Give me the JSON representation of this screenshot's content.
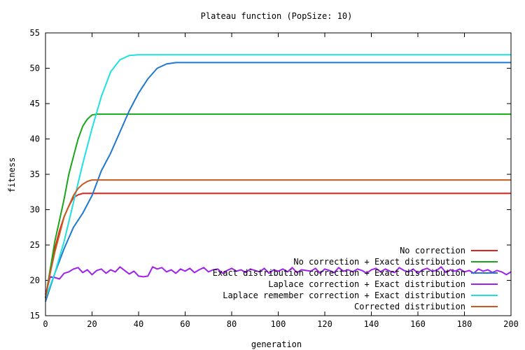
{
  "chart_data": {
    "type": "line",
    "title": "Plateau function (PopSize: 10)",
    "xlabel": "generation",
    "ylabel": "fitness",
    "xlim": [
      0,
      200
    ],
    "ylim": [
      15,
      55
    ],
    "xticks": [
      0,
      20,
      40,
      60,
      80,
      100,
      120,
      140,
      160,
      180,
      200
    ],
    "yticks": [
      15,
      20,
      25,
      30,
      35,
      40,
      45,
      50,
      55
    ],
    "grid": false,
    "legend_position": "bottom-right",
    "series": [
      {
        "name": "No correction",
        "color": "#e0201c",
        "x": [
          0,
          2,
          4,
          6,
          8,
          10,
          12,
          14,
          16,
          18,
          20,
          200
        ],
        "y": [
          17.5,
          21.5,
          24.5,
          27.0,
          29.0,
          30.5,
          31.7,
          32.1,
          32.3,
          32.3,
          32.3,
          32.3
        ]
      },
      {
        "name": "No correction + Exact distribution",
        "color": "#1aa61a",
        "x": [
          0,
          2,
          4,
          6,
          8,
          10,
          12,
          14,
          16,
          18,
          20,
          22,
          200
        ],
        "y": [
          17.5,
          21.5,
          25.5,
          28.5,
          31.5,
          35.0,
          37.5,
          40.0,
          41.8,
          42.8,
          43.4,
          43.5,
          43.5
        ]
      },
      {
        "name": "Exact distribution correction + Exact distribution",
        "color": "#1f78d1",
        "x": [
          0,
          4,
          8,
          12,
          16,
          20,
          24,
          28,
          32,
          36,
          40,
          44,
          48,
          52,
          56,
          200
        ],
        "y": [
          17.0,
          21.0,
          24.5,
          27.5,
          29.5,
          32.0,
          35.5,
          38.0,
          41.0,
          44.0,
          46.5,
          48.5,
          50.0,
          50.6,
          50.8,
          50.8
        ]
      },
      {
        "name": "Laplace correction + Exact distribution",
        "color": "#a020f0",
        "x": [
          0,
          2,
          4,
          6,
          8,
          10,
          12,
          14,
          16,
          18,
          20,
          22,
          24,
          26,
          28,
          30,
          32,
          34,
          36,
          38,
          40,
          42,
          44,
          46,
          48,
          50,
          52,
          54,
          56,
          58,
          60,
          62,
          64,
          66,
          68,
          70,
          72,
          74,
          76,
          78,
          80,
          82,
          84,
          86,
          88,
          90,
          92,
          94,
          96,
          98,
          100,
          102,
          104,
          106,
          108,
          110,
          112,
          114,
          116,
          118,
          120,
          122,
          124,
          126,
          128,
          130,
          132,
          134,
          136,
          138,
          140,
          142,
          144,
          146,
          148,
          150,
          152,
          154,
          156,
          158,
          160,
          162,
          164,
          166,
          168,
          170,
          172,
          174,
          176,
          178,
          180,
          182,
          184,
          186,
          188,
          190,
          192,
          194,
          196,
          198,
          200
        ],
        "y": [
          18.0,
          20.5,
          20.4,
          20.2,
          21.0,
          21.2,
          21.6,
          21.8,
          21.1,
          21.5,
          20.8,
          21.4,
          21.6,
          21.0,
          21.5,
          21.2,
          21.9,
          21.4,
          20.9,
          21.3,
          20.6,
          20.5,
          20.6,
          21.9,
          21.6,
          21.8,
          21.2,
          21.5,
          21.0,
          21.6,
          21.3,
          21.7,
          21.1,
          21.5,
          21.8,
          21.2,
          21.5,
          21.6,
          21.0,
          21.4,
          21.7,
          21.3,
          21.5,
          21.1,
          21.6,
          21.4,
          21.2,
          21.7,
          21.0,
          21.5,
          21.3,
          21.6,
          21.2,
          21.8,
          21.1,
          21.5,
          21.4,
          21.3,
          21.7,
          21.0,
          21.6,
          21.4,
          21.1,
          21.8,
          21.3,
          21.5,
          21.2,
          21.6,
          21.4,
          21.0,
          21.5,
          21.7,
          21.2,
          21.6,
          21.3,
          21.1,
          21.8,
          21.4,
          21.2,
          21.6,
          21.0,
          21.5,
          21.7,
          21.3,
          21.4,
          21.9,
          21.1,
          21.5,
          21.3,
          21.6,
          21.2,
          21.4,
          21.0,
          21.6,
          21.3,
          21.5,
          21.1,
          21.4,
          21.2,
          20.8,
          21.2
        ]
      },
      {
        "name": "Laplace remember correction + Exact distribution",
        "color": "#1ee0e0",
        "x": [
          0,
          4,
          8,
          12,
          16,
          20,
          24,
          28,
          32,
          36,
          40,
          200
        ],
        "y": [
          17.5,
          21.0,
          25.5,
          31.0,
          36.5,
          41.5,
          46.0,
          49.5,
          51.2,
          51.8,
          51.9,
          51.9
        ]
      },
      {
        "name": "Corrected distribution",
        "color": "#c85a1e",
        "x": [
          0,
          2,
          4,
          6,
          8,
          10,
          12,
          14,
          16,
          18,
          20,
          22,
          200
        ],
        "y": [
          17.5,
          21.0,
          24.0,
          26.5,
          29.0,
          30.5,
          32.0,
          33.0,
          33.6,
          34.0,
          34.2,
          34.2,
          34.2
        ]
      }
    ]
  }
}
